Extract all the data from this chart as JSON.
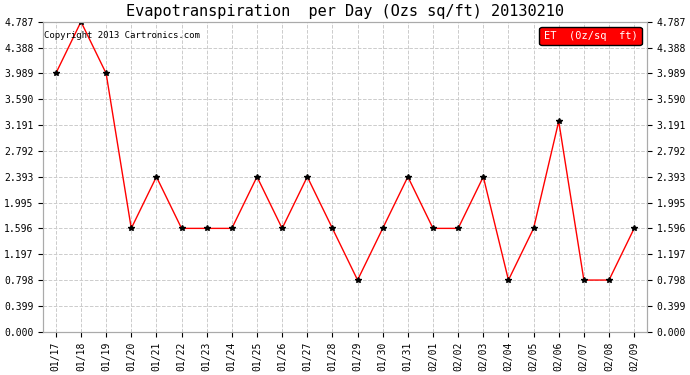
{
  "title": "Evapotranspiration  per Day (Ozs sq/ft) 20130210",
  "legend_label": "ET  (0z/sq  ft)",
  "copyright": "Copyright 2013 Cartronics.com",
  "x_labels": [
    "01/17",
    "01/18",
    "01/19",
    "01/20",
    "01/21",
    "01/22",
    "01/23",
    "01/24",
    "01/25",
    "01/26",
    "01/27",
    "01/28",
    "01/29",
    "01/30",
    "01/31",
    "02/01",
    "02/02",
    "02/03",
    "02/04",
    "02/05",
    "02/06",
    "02/07",
    "02/08",
    "02/09"
  ],
  "y_values": [
    3.989,
    4.787,
    3.989,
    1.596,
    2.393,
    1.596,
    1.596,
    1.596,
    2.393,
    1.596,
    2.393,
    1.596,
    0.798,
    1.596,
    2.393,
    1.596,
    1.596,
    2.393,
    0.798,
    1.596,
    3.25,
    0.798,
    0.798,
    1.596
  ],
  "yticks": [
    0.0,
    0.399,
    0.798,
    1.197,
    1.596,
    1.995,
    2.393,
    2.792,
    3.191,
    3.59,
    3.989,
    4.388,
    4.787
  ],
  "line_color": "red",
  "marker": "*",
  "marker_color": "black",
  "marker_size": 4,
  "line_width": 1.0,
  "bg_color": "#ffffff",
  "grid_color": "#cccccc",
  "grid_style": "--",
  "legend_bg": "red",
  "legend_text_color": "white",
  "title_fontsize": 11,
  "tick_fontsize": 7,
  "copyright_fontsize": 6.5,
  "legend_fontsize": 7.5,
  "ymax": 4.787,
  "ymin": 0.0
}
